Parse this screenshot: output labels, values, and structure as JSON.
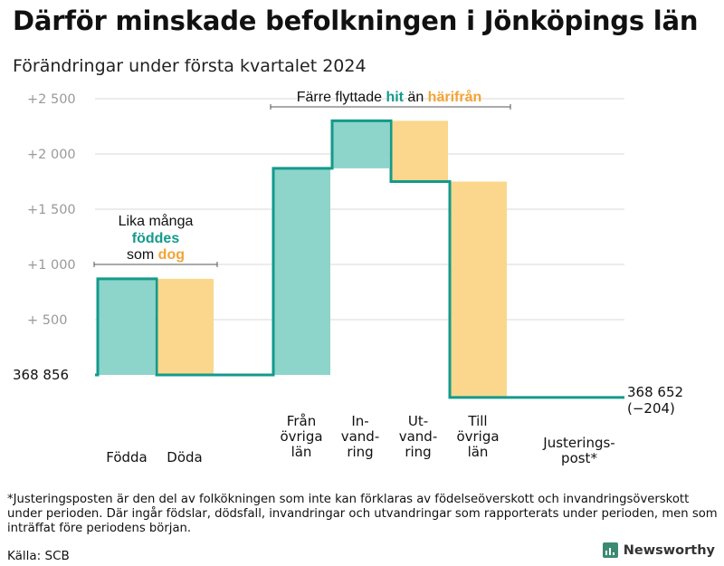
{
  "title": "Därför minskade befolkningen i Jönköpings län",
  "subtitle": "Förändringar under första kvartalet 2024",
  "chart_data": {
    "type": "waterfall",
    "base_label": "368  856",
    "end_label_line1": "368 652",
    "end_label_line2": "(−204)",
    "y_axis": {
      "range": [
        -250,
        2500
      ],
      "ticks": [
        {
          "value": 500,
          "label": "+  500"
        },
        {
          "value": 1000,
          "label": "+1  000"
        },
        {
          "value": 1500,
          "label": "+1  500"
        },
        {
          "value": 2000,
          "label": "+2  000"
        },
        {
          "value": 2500,
          "label": "+2  500"
        }
      ]
    },
    "steps": [
      {
        "label_lines": [
          "Födda"
        ],
        "value": 870,
        "color": "#8dd4ca"
      },
      {
        "label_lines": [
          "Döda"
        ],
        "value": -870,
        "color": "#fad78d"
      },
      {
        "label_lines": [
          "Från",
          "övriga",
          "län"
        ],
        "value": 1870,
        "color": "#8dd4ca"
      },
      {
        "label_lines": [
          "In-",
          "vand-",
          "ring"
        ],
        "value": 430,
        "color": "#8dd4ca"
      },
      {
        "label_lines": [
          "Ut-",
          "vand-",
          "ring"
        ],
        "value": -550,
        "color": "#fad78d"
      },
      {
        "label_lines": [
          "Till",
          "övriga",
          "län"
        ],
        "value": -1954,
        "color": "#fad78d"
      },
      {
        "label_lines": [
          "Justerings-",
          "post*"
        ],
        "value": 0,
        "color": "#8dd4ca"
      }
    ],
    "annotations": [
      {
        "lines": [
          [
            {
              "text": "Lika många",
              "color": "#111111",
              "bold": false
            }
          ],
          [
            {
              "text": "föddes",
              "color": "#139a8b",
              "bold": true
            }
          ],
          [
            {
              "text": "som ",
              "color": "#111111",
              "bold": false
            },
            {
              "text": "dog",
              "color": "#f2a435",
              "bold": true
            }
          ]
        ]
      },
      {
        "lines": [
          [
            {
              "text": "Färre flyttade ",
              "color": "#111111",
              "bold": false
            },
            {
              "text": "hit",
              "color": "#139a8b",
              "bold": true
            },
            {
              "text": "  än ",
              "color": "#111111",
              "bold": false
            },
            {
              "text": "härifrån",
              "color": "#f2a435",
              "bold": true
            }
          ]
        ]
      }
    ],
    "step_line_color": "#139a8b"
  },
  "footnote": "*Justeringsposten är den del av folkökningen som inte kan förklaras av födelseöverskott och invandringsöverskott under perioden. Där ingår födslar, dödsfall, invandringar och utvandringar som rapporterats under perioden, men som inträffat före periodens början.",
  "source": "Källa: SCB",
  "brand": "Newsworthy"
}
